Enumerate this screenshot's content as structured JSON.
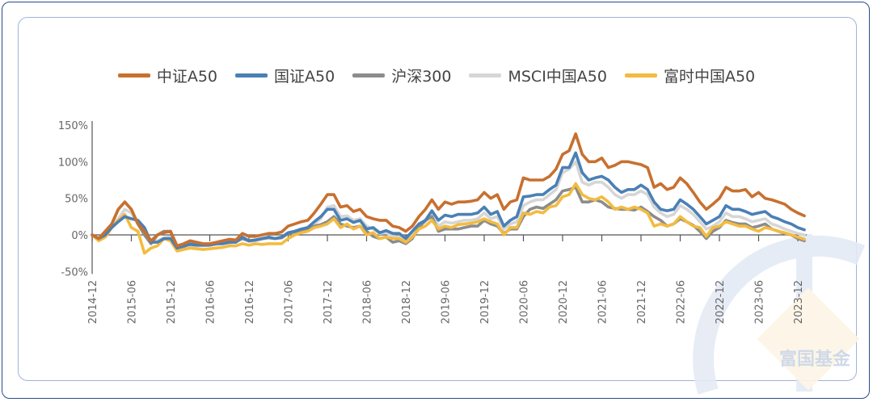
{
  "watermark": {
    "brand_text": "富国基金"
  },
  "chart_data": {
    "type": "line",
    "title": "",
    "xlabel": "",
    "ylabel": "",
    "legend_position": "top",
    "grid": false,
    "ylim": [
      -50,
      150
    ],
    "yticks": [
      "150%",
      "100%",
      "50%",
      "0%",
      "-50%"
    ],
    "ytick_values": [
      150,
      100,
      50,
      0,
      -50
    ],
    "xticks": [
      "2014-12",
      "2015-06",
      "2015-12",
      "2016-06",
      "2016-12",
      "2017-06",
      "2017-12",
      "2018-06",
      "2018-12",
      "2019-06",
      "2019-12",
      "2020-06",
      "2020-12",
      "2021-06",
      "2021-12",
      "2022-06",
      "2022-12",
      "2023-06",
      "2023-12"
    ],
    "x_start": "2014-12",
    "x_end": "2024-01",
    "x_unit": "month",
    "series": [
      {
        "name": "中证A50",
        "color": "#c8702f",
        "values": [
          0,
          -5,
          5,
          15,
          35,
          45,
          35,
          15,
          5,
          -8,
          0,
          3,
          5,
          -15,
          -12,
          -8,
          -10,
          -12,
          -12,
          -10,
          -8,
          -6,
          -7,
          2,
          -2,
          -2,
          0,
          2,
          2,
          4,
          12,
          15,
          18,
          20,
          30,
          42,
          55,
          55,
          38,
          40,
          32,
          35,
          25,
          22,
          20,
          20,
          12,
          10,
          5,
          12,
          25,
          35,
          48,
          35,
          45,
          42,
          45,
          45,
          46,
          48,
          58,
          50,
          55,
          35,
          45,
          48,
          78,
          75,
          75,
          75,
          80,
          90,
          110,
          115,
          138,
          110,
          100,
          100,
          105,
          92,
          95,
          100,
          100,
          98,
          96,
          92,
          65,
          70,
          62,
          65,
          78,
          70,
          58,
          45,
          35,
          42,
          50,
          65,
          60,
          60,
          62,
          52,
          58,
          50,
          48,
          45,
          42,
          35,
          30,
          26
        ]
      },
      {
        "name": "国证A50",
        "color": "#4a80b5",
        "values": [
          0,
          -5,
          0,
          10,
          18,
          25,
          22,
          20,
          10,
          -10,
          -10,
          -5,
          -5,
          -18,
          -15,
          -13,
          -14,
          -14,
          -14,
          -12,
          -12,
          -10,
          -10,
          -3,
          -8,
          -7,
          -5,
          -3,
          -5,
          -3,
          3,
          5,
          8,
          10,
          18,
          25,
          35,
          35,
          20,
          22,
          17,
          20,
          8,
          10,
          3,
          6,
          2,
          2,
          -5,
          5,
          15,
          20,
          33,
          20,
          27,
          25,
          28,
          28,
          28,
          30,
          38,
          28,
          32,
          12,
          20,
          25,
          52,
          53,
          55,
          55,
          62,
          68,
          92,
          92,
          112,
          85,
          75,
          78,
          80,
          75,
          65,
          58,
          62,
          62,
          68,
          62,
          45,
          35,
          33,
          35,
          48,
          42,
          35,
          25,
          15,
          20,
          25,
          40,
          35,
          35,
          32,
          28,
          30,
          32,
          25,
          22,
          18,
          15,
          10,
          7
        ]
      },
      {
        "name": "沪深300",
        "color": "#8c8c8c",
        "values": [
          0,
          -5,
          0,
          15,
          35,
          45,
          35,
          15,
          0,
          -12,
          0,
          5,
          5,
          -18,
          -16,
          -12,
          -13,
          -14,
          -13,
          -12,
          -10,
          -10,
          -9,
          -5,
          -8,
          -7,
          -5,
          -4,
          -5,
          -4,
          2,
          4,
          6,
          8,
          12,
          14,
          18,
          25,
          15,
          12,
          10,
          12,
          5,
          -2,
          -5,
          -3,
          -10,
          -8,
          -12,
          -5,
          10,
          20,
          25,
          5,
          8,
          8,
          8,
          10,
          12,
          12,
          20,
          15,
          12,
          2,
          8,
          8,
          25,
          35,
          38,
          36,
          42,
          48,
          60,
          62,
          65,
          45,
          45,
          48,
          45,
          38,
          36,
          35,
          35,
          34,
          38,
          32,
          25,
          20,
          12,
          15,
          22,
          18,
          13,
          5,
          -5,
          5,
          10,
          20,
          17,
          15,
          15,
          10,
          12,
          15,
          8,
          5,
          2,
          0,
          -5,
          -8
        ]
      },
      {
        "name": "MSCI中国A50",
        "color": "#d6d6d6",
        "values": [
          0,
          -5,
          0,
          10,
          22,
          35,
          30,
          15,
          5,
          -10,
          -8,
          -4,
          -3,
          -18,
          -16,
          -14,
          -15,
          -15,
          -14,
          -13,
          -12,
          -11,
          -10,
          -5,
          -9,
          -8,
          -6,
          -4,
          -5,
          -4,
          2,
          4,
          8,
          10,
          15,
          22,
          38,
          40,
          25,
          26,
          20,
          22,
          12,
          8,
          2,
          3,
          -2,
          -3,
          -8,
          0,
          12,
          18,
          28,
          12,
          18,
          16,
          18,
          20,
          20,
          22,
          30,
          22,
          25,
          8,
          15,
          18,
          40,
          45,
          48,
          48,
          55,
          62,
          85,
          90,
          100,
          72,
          68,
          72,
          72,
          65,
          55,
          50,
          55,
          55,
          60,
          55,
          38,
          30,
          25,
          28,
          40,
          35,
          28,
          18,
          8,
          12,
          18,
          30,
          25,
          25,
          22,
          18,
          20,
          22,
          15,
          12,
          8,
          5,
          2,
          0
        ]
      },
      {
        "name": "富时中国A50",
        "color": "#f3bb3f",
        "values": [
          0,
          -8,
          -3,
          10,
          20,
          28,
          10,
          5,
          -25,
          -18,
          -15,
          -5,
          -8,
          -22,
          -20,
          -18,
          -19,
          -20,
          -19,
          -18,
          -17,
          -15,
          -15,
          -12,
          -14,
          -12,
          -13,
          -12,
          -12,
          -12,
          -5,
          0,
          3,
          5,
          10,
          12,
          15,
          22,
          10,
          15,
          8,
          12,
          0,
          3,
          -5,
          -3,
          -5,
          -5,
          -10,
          -3,
          8,
          12,
          20,
          8,
          12,
          10,
          14,
          15,
          16,
          18,
          22,
          18,
          15,
          0,
          10,
          10,
          30,
          28,
          32,
          30,
          38,
          40,
          52,
          55,
          70,
          55,
          50,
          48,
          52,
          45,
          35,
          38,
          35,
          38,
          35,
          30,
          12,
          15,
          12,
          15,
          25,
          18,
          12,
          10,
          -2,
          10,
          12,
          18,
          15,
          12,
          12,
          8,
          5,
          10,
          8,
          5,
          3,
          0,
          -3,
          -6
        ]
      }
    ]
  }
}
